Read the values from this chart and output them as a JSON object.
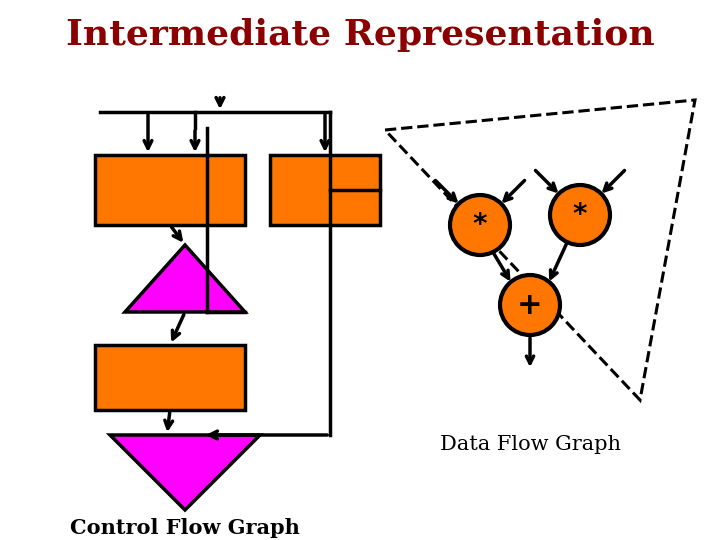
{
  "title": "Intermediate Representation",
  "title_color": "#8B0000",
  "title_fontsize": 26,
  "bg_color": "#FFFFFF",
  "orange": "#FF7700",
  "magenta": "#FF00FF",
  "black": "#000000",
  "cfg_label": "Control Flow Graph",
  "dfg_label": "Data Flow Graph",
  "cfg_label_fontsize": 15,
  "dfg_label_fontsize": 15
}
